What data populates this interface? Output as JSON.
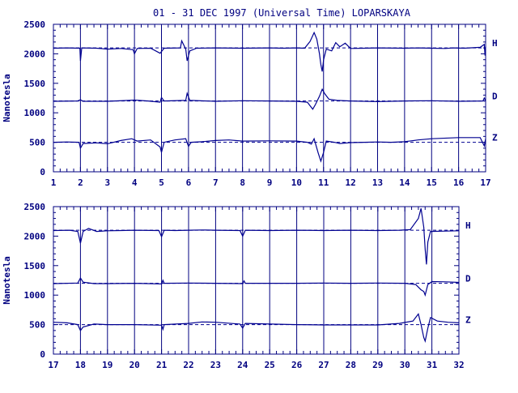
{
  "title": "01 - 31 DEC 1997 (Universal Time) LOPARSKAYA",
  "colors": {
    "axis": "#000080",
    "trace": "#000090",
    "background": "#ffffff"
  },
  "chart_data": [
    {
      "type": "line",
      "title": "01 - 31 DEC 1997 (Universal Time) LOPARSKAYA",
      "ylabel": "Nanotesla",
      "xlabel": "",
      "xlim": [
        1,
        17
      ],
      "ylim": [
        0,
        2500
      ],
      "grid": true,
      "x_ticks": [
        "1",
        "2",
        "3",
        "4",
        "5",
        "6",
        "7",
        "8",
        "9",
        "10",
        "11",
        "12",
        "13",
        "14",
        "15",
        "16",
        "17"
      ],
      "y_ticks": [
        "0",
        "500",
        "1000",
        "1500",
        "2000",
        "2500"
      ],
      "series": [
        {
          "name": "H",
          "baseline": 2100,
          "points": [
            [
              1,
              2095
            ],
            [
              1.5,
              2100
            ],
            [
              1.98,
              2095
            ],
            [
              2.0,
              1880
            ],
            [
              2.05,
              2100
            ],
            [
              2.6,
              2095
            ],
            [
              3.0,
              2080
            ],
            [
              3.5,
              2090
            ],
            [
              3.95,
              2070
            ],
            [
              4.0,
              2000
            ],
            [
              4.1,
              2090
            ],
            [
              4.6,
              2095
            ],
            [
              4.95,
              2010
            ],
            [
              5.1,
              2095
            ],
            [
              5.7,
              2100
            ],
            [
              5.75,
              2220
            ],
            [
              5.9,
              2080
            ],
            [
              5.95,
              1880
            ],
            [
              6.05,
              2050
            ],
            [
              6.3,
              2095
            ],
            [
              7,
              2100
            ],
            [
              8,
              2095
            ],
            [
              9,
              2100
            ],
            [
              9.5,
              2095
            ],
            [
              10,
              2100
            ],
            [
              10.3,
              2095
            ],
            [
              10.5,
              2210
            ],
            [
              10.65,
              2360
            ],
            [
              10.75,
              2250
            ],
            [
              10.85,
              2000
            ],
            [
              10.9,
              1820
            ],
            [
              10.95,
              1700
            ],
            [
              11.0,
              1900
            ],
            [
              11.1,
              2080
            ],
            [
              11.3,
              2050
            ],
            [
              11.45,
              2190
            ],
            [
              11.6,
              2120
            ],
            [
              11.8,
              2180
            ],
            [
              12,
              2090
            ],
            [
              12.5,
              2095
            ],
            [
              13,
              2100
            ],
            [
              14,
              2095
            ],
            [
              14.5,
              2100
            ],
            [
              15,
              2095
            ],
            [
              15.5,
              2090
            ],
            [
              15.8,
              2100
            ],
            [
              16.2,
              2095
            ],
            [
              16.8,
              2110
            ],
            [
              16.95,
              2160
            ],
            [
              16.98,
              1970
            ],
            [
              17,
              2120
            ]
          ]
        },
        {
          "name": "D",
          "baseline": 1200,
          "points": [
            [
              1,
              1195
            ],
            [
              1.9,
              1200
            ],
            [
              2.0,
              1220
            ],
            [
              2.1,
              1195
            ],
            [
              3,
              1195
            ],
            [
              3.8,
              1210
            ],
            [
              4.0,
              1215
            ],
            [
              4.5,
              1200
            ],
            [
              4.95,
              1180
            ],
            [
              5.0,
              1260
            ],
            [
              5.1,
              1200
            ],
            [
              5.9,
              1210
            ],
            [
              5.95,
              1330
            ],
            [
              6.05,
              1210
            ],
            [
              7,
              1195
            ],
            [
              8,
              1205
            ],
            [
              9,
              1200
            ],
            [
              10,
              1195
            ],
            [
              10.4,
              1180
            ],
            [
              10.6,
              1060
            ],
            [
              10.7,
              1140
            ],
            [
              10.85,
              1280
            ],
            [
              10.95,
              1400
            ],
            [
              11.05,
              1320
            ],
            [
              11.2,
              1230
            ],
            [
              11.5,
              1210
            ],
            [
              12,
              1200
            ],
            [
              13,
              1190
            ],
            [
              14,
              1200
            ],
            [
              15,
              1205
            ],
            [
              16,
              1195
            ],
            [
              16.9,
              1200
            ],
            [
              16.95,
              1250
            ],
            [
              17,
              1205
            ]
          ]
        },
        {
          "name": "Z",
          "baseline": 500,
          "points": [
            [
              1,
              500
            ],
            [
              1.5,
              505
            ],
            [
              1.95,
              500
            ],
            [
              2.0,
              400
            ],
            [
              2.1,
              480
            ],
            [
              2.6,
              490
            ],
            [
              3.0,
              475
            ],
            [
              3.5,
              530
            ],
            [
              3.9,
              560
            ],
            [
              4.1,
              520
            ],
            [
              4.6,
              540
            ],
            [
              4.95,
              420
            ],
            [
              5.0,
              330
            ],
            [
              5.1,
              500
            ],
            [
              5.5,
              540
            ],
            [
              5.9,
              560
            ],
            [
              6.0,
              430
            ],
            [
              6.1,
              500
            ],
            [
              6.5,
              510
            ],
            [
              7,
              530
            ],
            [
              7.5,
              540
            ],
            [
              8,
              520
            ],
            [
              9,
              525
            ],
            [
              10,
              520
            ],
            [
              10.4,
              500
            ],
            [
              10.55,
              470
            ],
            [
              10.65,
              560
            ],
            [
              10.8,
              320
            ],
            [
              10.9,
              180
            ],
            [
              11.0,
              330
            ],
            [
              11.1,
              520
            ],
            [
              11.4,
              500
            ],
            [
              11.6,
              480
            ],
            [
              12,
              495
            ],
            [
              12.5,
              500
            ],
            [
              13,
              505
            ],
            [
              13.5,
              500
            ],
            [
              14,
              510
            ],
            [
              14.5,
              540
            ],
            [
              15,
              560
            ],
            [
              16,
              580
            ],
            [
              16.8,
              580
            ],
            [
              16.95,
              440
            ],
            [
              17,
              560
            ]
          ]
        }
      ],
      "component_labels": [
        "H",
        "D",
        "Z"
      ]
    },
    {
      "type": "line",
      "ylabel": "Nanotesla",
      "xlabel": "",
      "xlim": [
        17,
        32
      ],
      "ylim": [
        0,
        2500
      ],
      "grid": true,
      "x_ticks": [
        "17",
        "18",
        "19",
        "20",
        "21",
        "22",
        "23",
        "24",
        "25",
        "26",
        "27",
        "28",
        "29",
        "30",
        "31",
        "32"
      ],
      "y_ticks": [
        "0",
        "500",
        "1000",
        "1500",
        "2000",
        "2500"
      ],
      "series": [
        {
          "name": "H",
          "baseline": 2100,
          "points": [
            [
              17,
              2095
            ],
            [
              17.6,
              2100
            ],
            [
              17.9,
              2080
            ],
            [
              18.0,
              1880
            ],
            [
              18.1,
              2080
            ],
            [
              18.3,
              2130
            ],
            [
              18.6,
              2080
            ],
            [
              19,
              2090
            ],
            [
              19.5,
              2095
            ],
            [
              20,
              2100
            ],
            [
              20.9,
              2095
            ],
            [
              21.0,
              1990
            ],
            [
              21.1,
              2100
            ],
            [
              21.5,
              2095
            ],
            [
              22,
              2100
            ],
            [
              22.5,
              2105
            ],
            [
              23,
              2100
            ],
            [
              23.9,
              2095
            ],
            [
              24.0,
              2000
            ],
            [
              24.1,
              2100
            ],
            [
              25,
              2095
            ],
            [
              26,
              2100
            ],
            [
              27,
              2095
            ],
            [
              28,
              2100
            ],
            [
              29,
              2095
            ],
            [
              29.8,
              2100
            ],
            [
              30.2,
              2110
            ],
            [
              30.5,
              2300
            ],
            [
              30.6,
              2470
            ],
            [
              30.7,
              2150
            ],
            [
              30.75,
              1780
            ],
            [
              30.8,
              1520
            ],
            [
              30.85,
              1900
            ],
            [
              30.95,
              2080
            ],
            [
              31.5,
              2085
            ],
            [
              32,
              2090
            ]
          ]
        },
        {
          "name": "D",
          "baseline": 1200,
          "points": [
            [
              17,
              1195
            ],
            [
              17.9,
              1205
            ],
            [
              18.0,
              1290
            ],
            [
              18.1,
              1220
            ],
            [
              18.5,
              1195
            ],
            [
              19,
              1195
            ],
            [
              20,
              1200
            ],
            [
              21,
              1190
            ],
            [
              21.05,
              1250
            ],
            [
              21.1,
              1200
            ],
            [
              22,
              1205
            ],
            [
              23,
              1200
            ],
            [
              24,
              1195
            ],
            [
              24.05,
              1240
            ],
            [
              24.1,
              1200
            ],
            [
              25,
              1200
            ],
            [
              26,
              1200
            ],
            [
              27,
              1205
            ],
            [
              28,
              1200
            ],
            [
              29,
              1205
            ],
            [
              30,
              1200
            ],
            [
              30.4,
              1180
            ],
            [
              30.6,
              1090
            ],
            [
              30.7,
              1060
            ],
            [
              30.75,
              1000
            ],
            [
              30.85,
              1180
            ],
            [
              31.0,
              1230
            ],
            [
              31.5,
              1225
            ],
            [
              32,
              1215
            ]
          ]
        },
        {
          "name": "Z",
          "baseline": 500,
          "points": [
            [
              17,
              540
            ],
            [
              17.5,
              530
            ],
            [
              17.9,
              500
            ],
            [
              18.0,
              400
            ],
            [
              18.1,
              460
            ],
            [
              18.5,
              510
            ],
            [
              19,
              500
            ],
            [
              20,
              500
            ],
            [
              21,
              490
            ],
            [
              21.05,
              420
            ],
            [
              21.1,
              500
            ],
            [
              22,
              520
            ],
            [
              22.5,
              545
            ],
            [
              23,
              540
            ],
            [
              23.9,
              510
            ],
            [
              24.0,
              440
            ],
            [
              24.1,
              520
            ],
            [
              25,
              510
            ],
            [
              26,
              500
            ],
            [
              27,
              495
            ],
            [
              28,
              495
            ],
            [
              29,
              495
            ],
            [
              29.8,
              520
            ],
            [
              30.3,
              560
            ],
            [
              30.5,
              680
            ],
            [
              30.6,
              500
            ],
            [
              30.7,
              280
            ],
            [
              30.75,
              220
            ],
            [
              30.85,
              440
            ],
            [
              30.95,
              620
            ],
            [
              31.2,
              560
            ],
            [
              31.6,
              540
            ],
            [
              32,
              530
            ]
          ]
        }
      ],
      "component_labels": [
        "H",
        "D",
        "Z"
      ]
    }
  ]
}
